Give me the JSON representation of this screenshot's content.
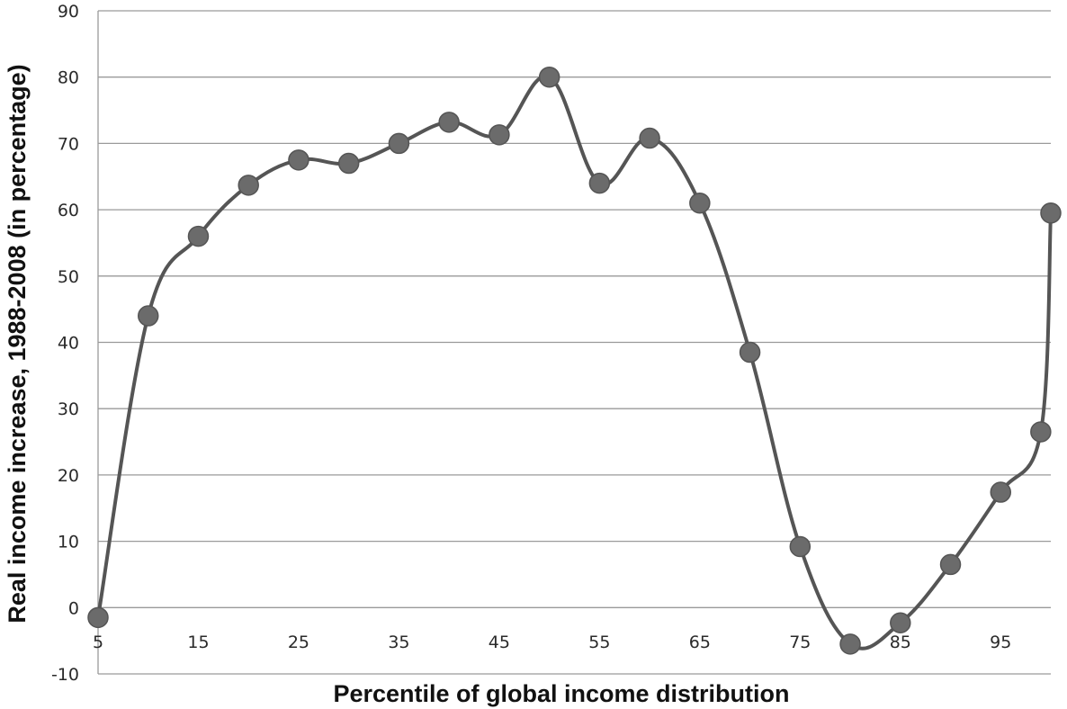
{
  "chart_data": {
    "type": "line",
    "title": "",
    "xlabel": "Percentile of global income distribution",
    "ylabel": "Real income increase, 1988-2008 (in percentage)",
    "xlim": [
      5,
      100
    ],
    "ylim": [
      -10,
      90
    ],
    "grid": true,
    "legend": "none",
    "x_ticks": [
      5,
      15,
      25,
      35,
      45,
      55,
      65,
      75,
      85,
      95
    ],
    "y_ticks": [
      -10,
      0,
      10,
      20,
      30,
      40,
      50,
      60,
      70,
      80,
      90
    ],
    "series": [
      {
        "color": "#555555",
        "x": [
          5,
          10,
          15,
          20,
          25,
          30,
          35,
          40,
          45,
          50,
          55,
          60,
          65,
          70,
          75,
          80,
          85,
          90,
          95,
          99,
          100
        ],
        "y": [
          -1.5,
          44,
          56,
          63.7,
          67.5,
          67,
          70,
          73.2,
          71.3,
          80,
          64,
          70.8,
          61,
          38.5,
          9.2,
          -5.5,
          -2.3,
          6.5,
          17.4,
          26.5,
          59.5
        ]
      }
    ]
  }
}
